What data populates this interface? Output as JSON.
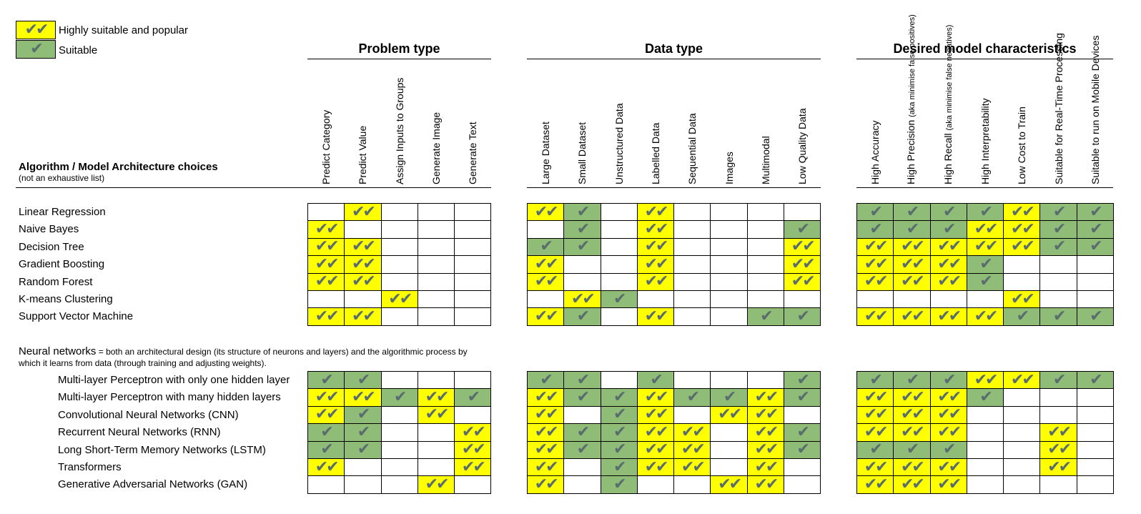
{
  "legend": {
    "items": [
      {
        "label": "Highly suitable and popular",
        "marks": "✔✔",
        "color": "#ffff00"
      },
      {
        "label": "Suitable",
        "marks": "✔",
        "color": "#8fbc76"
      }
    ]
  },
  "header": {
    "algo_title": "Algorithm / Model Architecture choices",
    "algo_subtitle": "(not an exhaustive list)"
  },
  "groups": [
    {
      "title": "Problem type",
      "columns": [
        {
          "label": "Predict Category"
        },
        {
          "label": "Predict Value"
        },
        {
          "label": "Assign Inputs to Groups"
        },
        {
          "label": "Generate Image"
        },
        {
          "label": "Generate Text"
        }
      ]
    },
    {
      "title": "Data type",
      "columns": [
        {
          "label": "Large Dataset"
        },
        {
          "label": "Small Dataset"
        },
        {
          "label": "Unstructured Data"
        },
        {
          "label": "Labelled Data"
        },
        {
          "label": "Sequential Data"
        },
        {
          "label": "Images"
        },
        {
          "label": "Multimodal"
        },
        {
          "label": "Low Quality Data"
        }
      ]
    },
    {
      "title": "Desired model characteristics",
      "columns": [
        {
          "label": "High Accuracy"
        },
        {
          "label": "High Precision",
          "note": "(aka minimise false positives)"
        },
        {
          "label": "High Recall",
          "note": "(aka minimise false negatives)"
        },
        {
          "label": "High Interpretability"
        },
        {
          "label": "Low Cost to Train"
        },
        {
          "label": "Suitable for Real-Time Processing"
        },
        {
          "label": "Suitable to run on Mobile Devices"
        }
      ]
    }
  ],
  "classic_rows": [
    {
      "name": "Linear Regression",
      "cells": [
        "",
        "Y",
        "",
        "",
        "",
        "Y",
        "G",
        "",
        "Y",
        "",
        "",
        "",
        "",
        "G",
        "G",
        "G",
        "G",
        "Y",
        "G",
        "G"
      ]
    },
    {
      "name": "Naive Bayes",
      "cells": [
        "Y",
        "",
        "",
        "",
        "",
        "",
        "G",
        "",
        "Y",
        "",
        "",
        "",
        "G",
        "G",
        "G",
        "G",
        "Y",
        "Y",
        "G",
        "G"
      ]
    },
    {
      "name": "Decision Tree",
      "cells": [
        "Y",
        "Y",
        "",
        "",
        "",
        "G",
        "G",
        "",
        "Y",
        "",
        "",
        "",
        "Y",
        "Y",
        "Y",
        "Y",
        "Y",
        "Y",
        "G",
        "G"
      ]
    },
    {
      "name": "Gradient Boosting",
      "cells": [
        "Y",
        "Y",
        "",
        "",
        "",
        "Y",
        "",
        "",
        "Y",
        "",
        "",
        "",
        "Y",
        "Y",
        "Y",
        "Y",
        "G",
        "",
        "",
        ""
      ]
    },
    {
      "name": "Random Forest",
      "cells": [
        "Y",
        "Y",
        "",
        "",
        "",
        "Y",
        "",
        "",
        "Y",
        "",
        "",
        "",
        "Y",
        "Y",
        "Y",
        "Y",
        "G",
        "",
        "",
        ""
      ]
    },
    {
      "name": "K-means Clustering",
      "cells": [
        "",
        "",
        "Y",
        "",
        "",
        "",
        "Y",
        "G",
        "",
        "",
        "",
        "",
        "",
        "",
        "",
        "",
        "",
        "Y",
        "",
        ""
      ]
    },
    {
      "name": "Support Vector Machine",
      "cells": [
        "Y",
        "Y",
        "",
        "",
        "",
        "Y",
        "G",
        "",
        "Y",
        "",
        "",
        "G",
        "G",
        "Y",
        "Y",
        "Y",
        "Y",
        "G",
        "G",
        "G"
      ]
    }
  ],
  "nn_intro": {
    "title": "Neural networks",
    "desc_line1": " = both an architectural design (its structure of neurons and layers) and the algorithmic process by",
    "desc_line2": "which it learns from data (through training and adjusting weights)."
  },
  "nn_rows": [
    {
      "name": "Multi-layer Perceptron with only one hidden layer",
      "cells": [
        "G",
        "G",
        "",
        "",
        "",
        "G",
        "G",
        "",
        "G",
        "",
        "",
        "",
        "G",
        "G",
        "G",
        "G",
        "Y",
        "Y",
        "G",
        "G"
      ]
    },
    {
      "name": "Multi-layer Perceptron with many hidden layers",
      "cells": [
        "Y",
        "Y",
        "G",
        "Y",
        "G",
        "Y",
        "G",
        "G",
        "Y",
        "G",
        "G",
        "Y",
        "G",
        "Y",
        "Y",
        "Y",
        "G",
        "",
        "",
        ""
      ]
    },
    {
      "name": "Convolutional Neural Networks (CNN)",
      "cells": [
        "Y",
        "G",
        "",
        "Y",
        "",
        "Y",
        "",
        "G",
        "Y",
        "",
        "Y",
        "Y",
        "",
        "Y",
        "Y",
        "Y",
        "",
        "",
        "",
        ""
      ]
    },
    {
      "name": "Recurrent Neural Networks (RNN)",
      "cells": [
        "G",
        "G",
        "",
        "",
        "Y",
        "Y",
        "G",
        "G",
        "Y",
        "Y",
        "",
        "Y",
        "G",
        "Y",
        "Y",
        "Y",
        "",
        "",
        "Y",
        ""
      ]
    },
    {
      "name": "Long Short-Term Memory Networks (LSTM)",
      "cells": [
        "G",
        "G",
        "",
        "",
        "Y",
        "Y",
        "G",
        "G",
        "Y",
        "Y",
        "",
        "Y",
        "G",
        "G",
        "G",
        "G",
        "",
        "",
        "Y",
        ""
      ]
    },
    {
      "name": "Transformers",
      "cells": [
        "Y",
        "",
        "",
        "",
        "Y",
        "Y",
        "",
        "G",
        "Y",
        "Y",
        "",
        "Y",
        "",
        "Y",
        "Y",
        "Y",
        "",
        "",
        "Y",
        ""
      ]
    },
    {
      "name": "Generative Adversarial Networks (GAN)",
      "cells": [
        "",
        "",
        "",
        "Y",
        "",
        "Y",
        "",
        "G",
        "",
        "",
        "Y",
        "Y",
        "",
        "Y",
        "Y",
        "Y",
        "",
        "",
        "",
        ""
      ]
    }
  ],
  "colors": {
    "highly": "#ffff00",
    "suitable": "#8fbc76",
    "check": "#5a6d6e"
  }
}
